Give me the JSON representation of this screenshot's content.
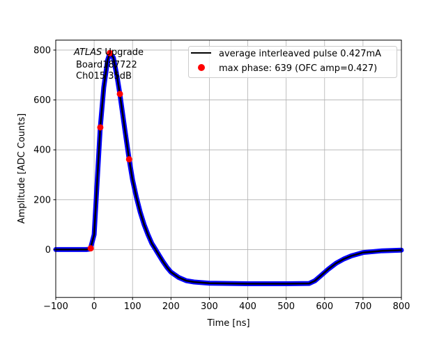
{
  "chart_data": {
    "type": "line",
    "xlabel": "Time [ns]",
    "ylabel": "Amplitude [ADC Counts]",
    "xlim": [
      -100,
      800
    ],
    "ylim": [
      -192,
      840
    ],
    "xticks": [
      -100,
      0,
      100,
      200,
      300,
      400,
      500,
      600,
      700,
      800
    ],
    "yticks": [
      0,
      200,
      400,
      600,
      800
    ],
    "grid": true,
    "legend_position": "top-right",
    "annotation": {
      "italic": "ATLAS",
      "rest": " Upgrade",
      "line2": "Board187722",
      "line3": "Ch015 35dB"
    },
    "series": [
      {
        "name": "average interleaved pulse 0.427mA",
        "style": "line",
        "color": "#000000",
        "scatter_color": "#0000ff",
        "x": [
          -100,
          -20,
          -10,
          0,
          10,
          16,
          25,
          35,
          41,
          50,
          60,
          67,
          80,
          91,
          100,
          110,
          120,
          130,
          140,
          150,
          160,
          170,
          180,
          190,
          200,
          220,
          240,
          260,
          300,
          400,
          500,
          560,
          575,
          590,
          610,
          630,
          650,
          670,
          700,
          750,
          800
        ],
        "y": [
          0,
          0,
          2,
          60,
          330,
          490,
          650,
          760,
          788,
          770,
          690,
          624,
          480,
          362,
          280,
          210,
          150,
          100,
          60,
          25,
          0,
          -25,
          -50,
          -72,
          -90,
          -112,
          -125,
          -130,
          -135,
          -137,
          -137,
          -136,
          -125,
          -105,
          -78,
          -55,
          -38,
          -25,
          -12,
          -5,
          -2
        ]
      },
      {
        "name": "max phase: 639 (OFC amp=0.427)",
        "style": "markers",
        "color": "#ff0000",
        "x": [
          -9,
          16,
          41,
          67,
          91
        ],
        "y": [
          5,
          490,
          788,
          624,
          362
        ]
      }
    ]
  }
}
